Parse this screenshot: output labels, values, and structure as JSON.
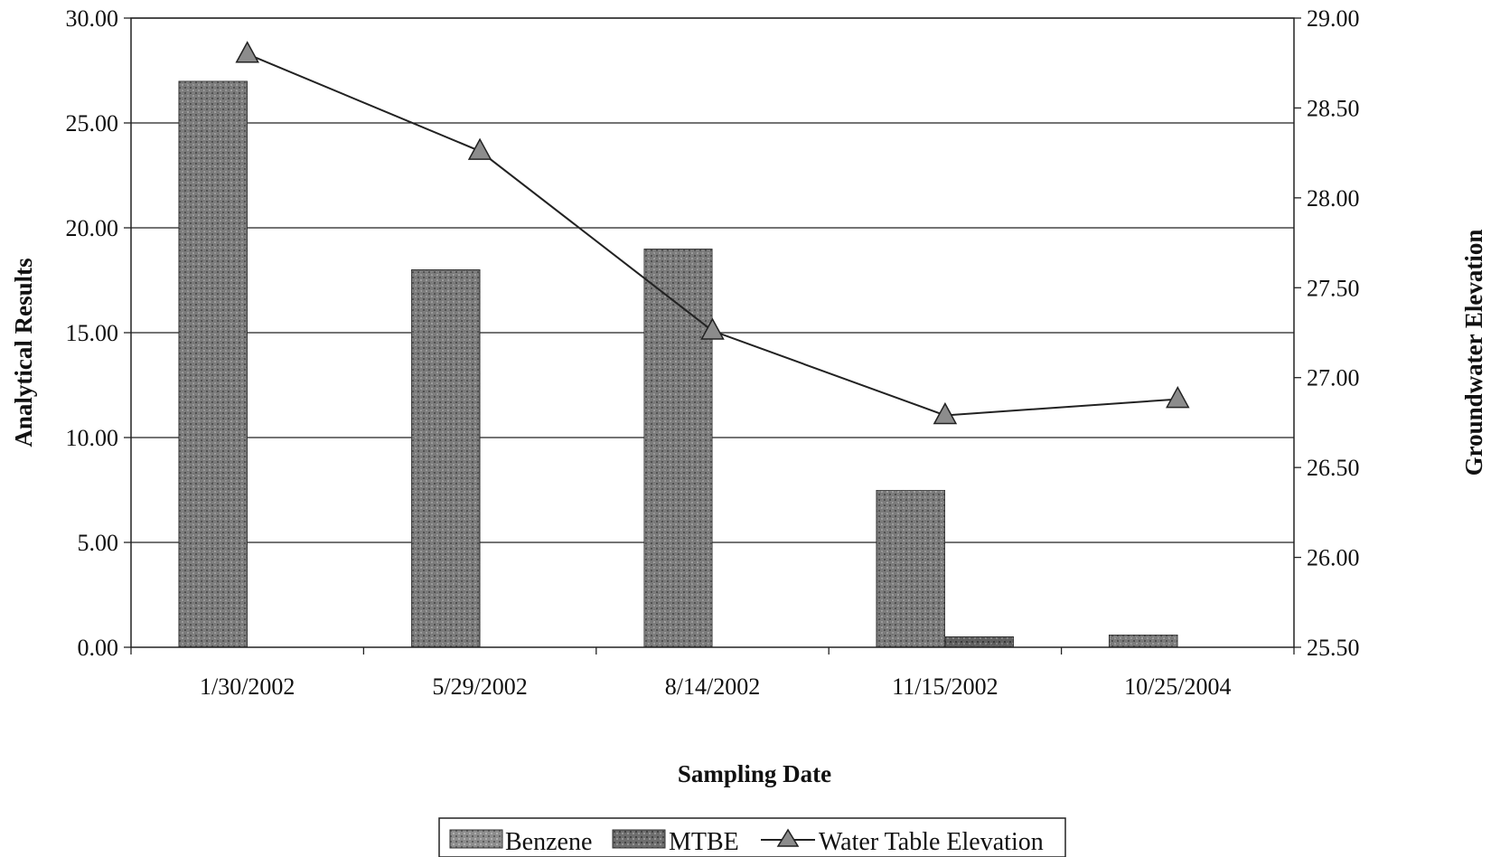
{
  "chart_data": {
    "type": "bar",
    "categories": [
      "1/30/2002",
      "5/29/2002",
      "8/14/2002",
      "11/15/2002",
      "10/25/2004"
    ],
    "series": [
      {
        "name": "Benzene",
        "type": "bar",
        "axis": "left",
        "values": [
          27.0,
          18.0,
          19.0,
          7.5,
          0.6
        ]
      },
      {
        "name": "MTBE",
        "type": "bar",
        "axis": "left",
        "values": [
          null,
          null,
          null,
          0.5,
          null
        ]
      },
      {
        "name": "Water Table Elevation",
        "type": "line",
        "marker": "triangle",
        "axis": "right",
        "values": [
          28.8,
          28.26,
          27.26,
          26.79,
          26.88
        ]
      }
    ],
    "xlabel": "Sampling Date",
    "ylabel": "Analytical Results",
    "y2label": "Groundwater Elevation",
    "ylim": [
      0,
      30
    ],
    "y2lim": [
      25.5,
      29.0
    ],
    "yticks": [
      "0.00",
      "5.00",
      "10.00",
      "15.00",
      "20.00",
      "25.00",
      "30.00"
    ],
    "y2ticks": [
      "25.50",
      "26.00",
      "26.50",
      "27.00",
      "27.50",
      "28.00",
      "28.50",
      "29.00"
    ],
    "grid": true,
    "legend_position": "bottom-center",
    "colors": {
      "benzene": "#8a8a8a",
      "mtbe": "#6a6a6a",
      "line": "#222222",
      "marker": "#8c8c8c"
    }
  }
}
